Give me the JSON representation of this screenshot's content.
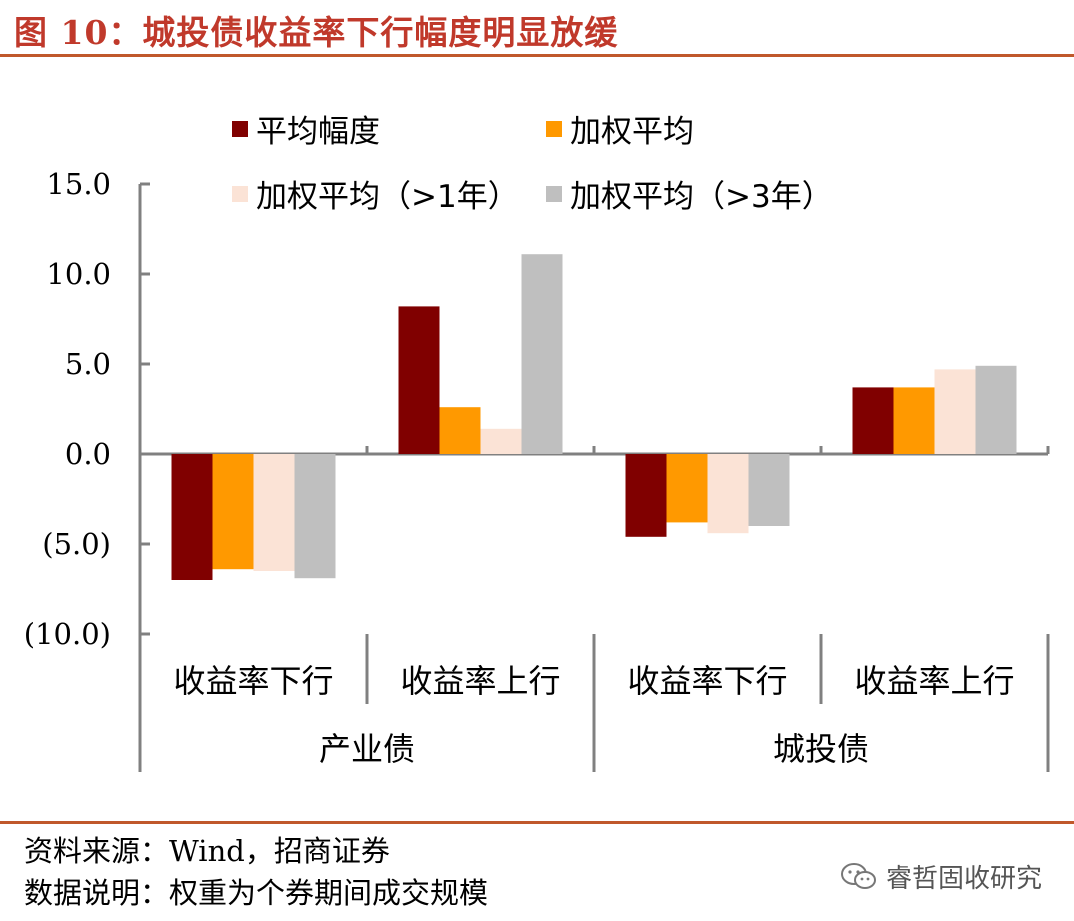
{
  "title": "图  10：城投债收益率下行幅度明显放缓",
  "colors": {
    "title": "#c0392b",
    "rule": "#c0582b",
    "axis": "#808080"
  },
  "footer": {
    "source": "资料来源：Wind，招商证券",
    "note": "数据说明：权重为个券期间成交规模"
  },
  "watermark": {
    "text": "睿哲固收研究",
    "icon": "wechat-icon"
  },
  "chart_data": {
    "type": "bar",
    "ylim": [
      -10,
      15
    ],
    "yticks": [
      -10,
      -5,
      0,
      5,
      10,
      15
    ],
    "ytick_labels": [
      "(10.0)",
      "(5.0)",
      "0.0",
      "5.0",
      "10.0",
      "15.0"
    ],
    "grid": false,
    "legend_position": "top",
    "groups": [
      "产业债",
      "城投债"
    ],
    "categories": [
      "收益率下行",
      "收益率上行",
      "收益率下行",
      "收益率上行"
    ],
    "series": [
      {
        "name": "平均幅度",
        "color": "#800000",
        "values": [
          -7.0,
          8.2,
          -4.6,
          3.7
        ]
      },
      {
        "name": "加权平均",
        "color": "#ff9900",
        "values": [
          -6.4,
          2.6,
          -3.8,
          3.7
        ]
      },
      {
        "name": "加权平均（>1年）",
        "color": "#fbe3d6",
        "values": [
          -6.5,
          1.4,
          -4.4,
          4.7
        ]
      },
      {
        "name": "加权平均（>3年）",
        "color": "#bfbfbf",
        "values": [
          -6.9,
          11.1,
          -4.0,
          4.9
        ]
      }
    ]
  }
}
